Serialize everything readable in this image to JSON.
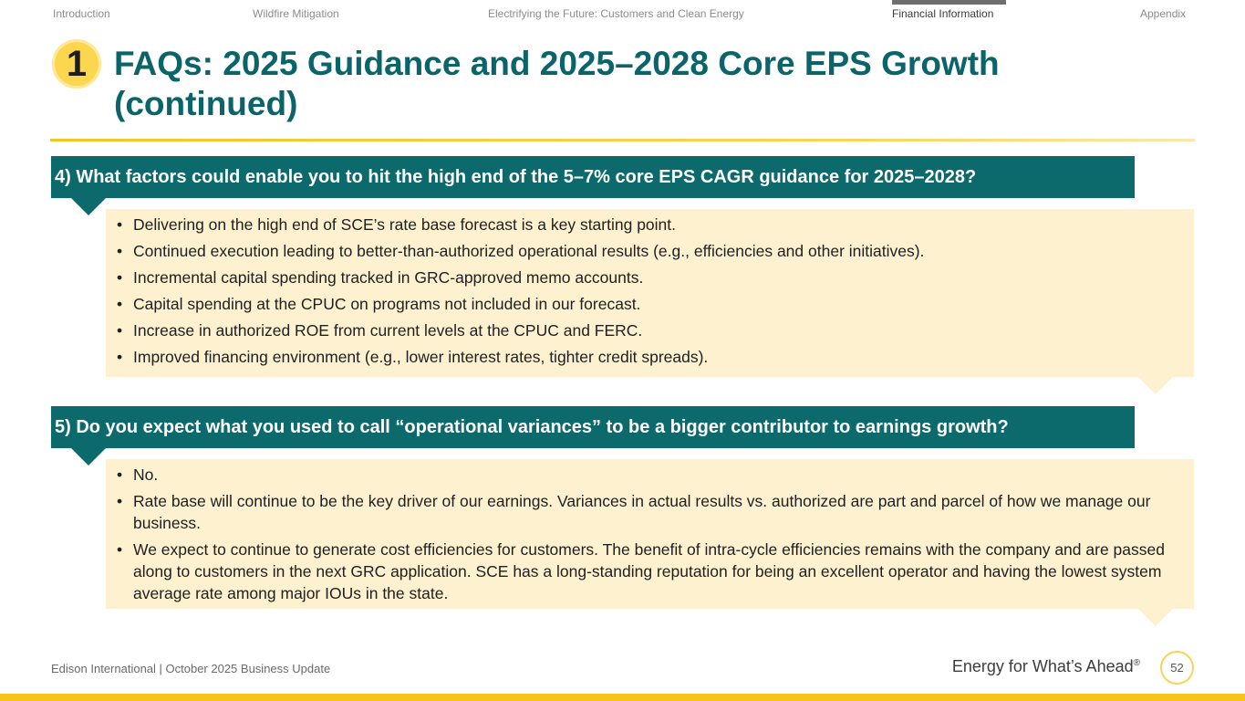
{
  "nav": {
    "items": [
      {
        "label": "Introduction",
        "active": false
      },
      {
        "label": "Wildfire Mitigation",
        "active": false
      },
      {
        "label": "Electrifying the Future: Customers and Clean Energy",
        "active": false
      },
      {
        "label": "Financial Information",
        "active": true
      },
      {
        "label": "Appendix",
        "active": false
      }
    ]
  },
  "header": {
    "section_number": "1",
    "title": "FAQs: 2025 Guidance and 2025–2028 Core EPS Growth (continued)"
  },
  "faqs": [
    {
      "question": "4) What factors could enable you to hit the high end of the 5–7% core EPS CAGR guidance for 2025–2028?",
      "answers": [
        "Delivering on the high end of SCE’s rate base forecast is a key starting point.",
        "Continued execution leading to better-than-authorized operational results (e.g., efficiencies and other initiatives).",
        "Incremental capital spending tracked in GRC-approved memo accounts.",
        "Capital spending at the CPUC on programs not included in our forecast.",
        "Increase in authorized ROE from current levels at the CPUC and FERC.",
        "Improved financing environment (e.g., lower interest rates, tighter credit spreads)."
      ]
    },
    {
      "question": "5) Do you expect what you used to call “operational variances” to be a bigger contributor to earnings growth?",
      "answers": [
        "No.",
        "Rate base will continue to be the key driver of our earnings. Variances in actual results vs. authorized are part and parcel of how we manage our business.",
        "We expect to continue to generate cost efficiencies for customers. The benefit of intra-cycle efficiencies remains with the company and are passed along to customers in the next GRC application. SCE has a long-standing reputation for being an excellent operator and having the lowest system average rate among major IOUs in the state."
      ]
    }
  ],
  "footer": {
    "left": "Edison International |  October 2025 Business Update",
    "tagline": "Energy for What’s Ahead",
    "tagline_mark": "®",
    "page_number": "52"
  },
  "colors": {
    "teal": "#0c6a6c",
    "title_teal": "#0a6469",
    "cream": "#fdf1cf",
    "yellow": "#f6c41d"
  }
}
